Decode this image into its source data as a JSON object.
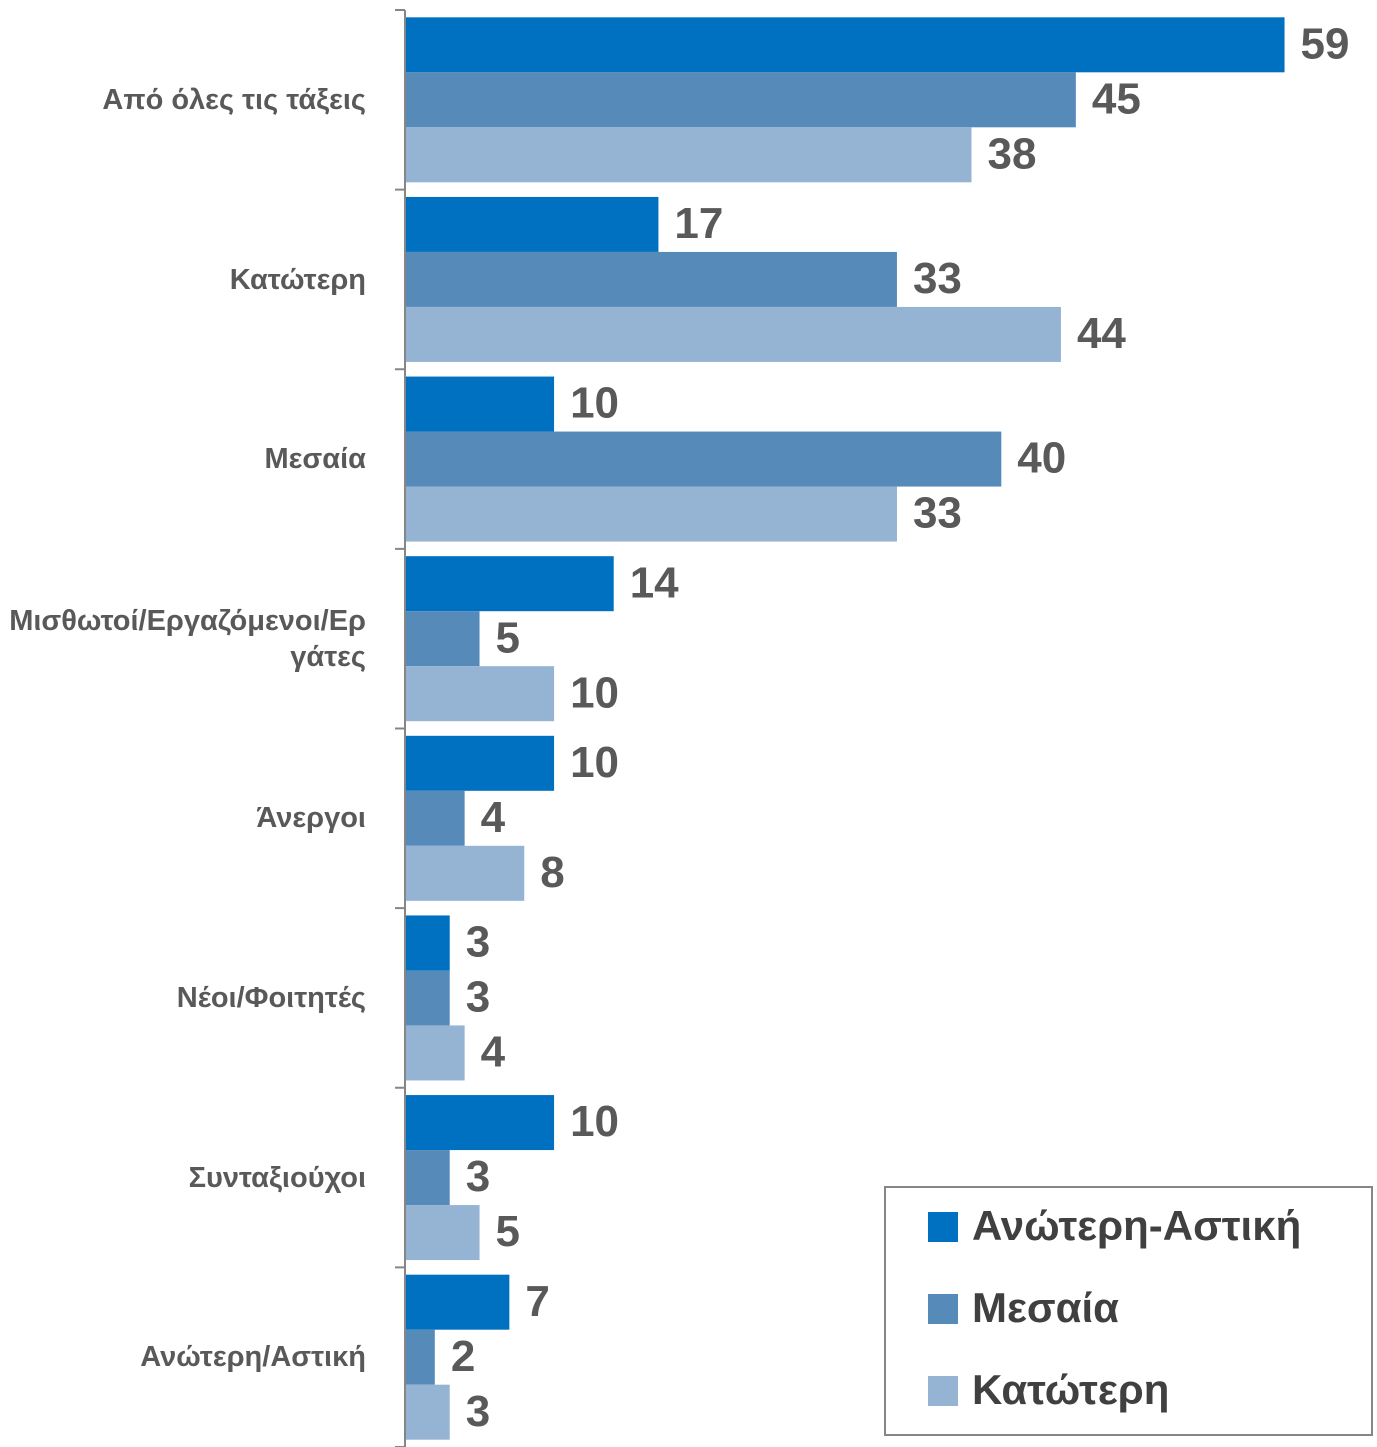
{
  "chart_data": {
    "type": "hbar",
    "categories": [
      "Από όλες τις τάξεις",
      "Κατώτερη",
      "Μεσαία",
      "Μισθωτοί/Εργαζόμενοι/Εργάτες",
      "Άνεργοι",
      "Νέοι/Φοιτητές",
      "Συνταξιούχοι",
      "Ανώτερη/Αστική"
    ],
    "series": [
      {
        "name": "Ανώτερη-Αστική",
        "color": "#0070c0",
        "values": [
          59,
          17,
          10,
          14,
          10,
          3,
          10,
          7
        ]
      },
      {
        "name": "Μεσαία",
        "color": "#558ab9",
        "values": [
          45,
          33,
          40,
          5,
          4,
          3,
          3,
          2
        ]
      },
      {
        "name": "Κατώτερη",
        "color": "#95b3d3",
        "values": [
          38,
          44,
          33,
          10,
          8,
          4,
          5,
          3
        ]
      }
    ],
    "xlim": [
      0,
      65
    ],
    "legend": "bottom-right"
  }
}
